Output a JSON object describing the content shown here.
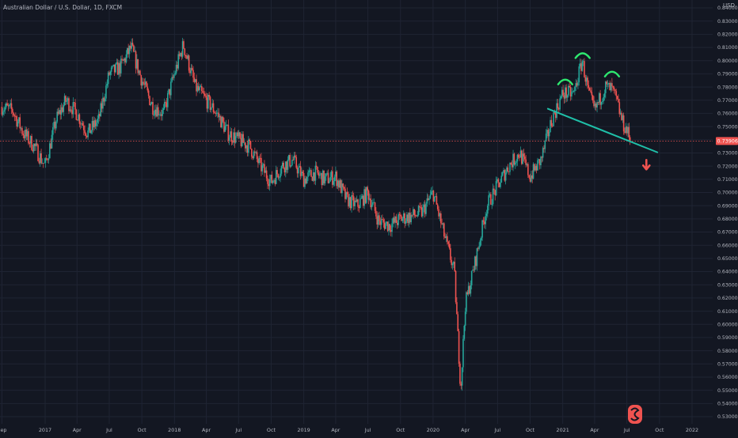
{
  "title": "Australian Dollar / U.S. Dollar, 1D, FXCM",
  "currency": "USD",
  "price_label": "0.73906",
  "colors": {
    "background": "#131722",
    "grid": "#1f2433",
    "up": "#26a69a",
    "down": "#ef5350",
    "axis_text": "#b2b5be",
    "neckline": "#1fbfa8",
    "shoulder_marks": "#2ee86f",
    "price_line": "#ef5350",
    "arrow": "#ef5350"
  },
  "chart_data": {
    "type": "candlestick",
    "symbol": "AUDUSD",
    "interval": "1D",
    "source": "FXCM",
    "y_axis": {
      "range": [
        0.525,
        0.84
      ],
      "ticks": [
        "0.84000",
        "0.83000",
        "0.82000",
        "0.81000",
        "0.80000",
        "0.79000",
        "0.78000",
        "0.77000",
        "0.76000",
        "0.75000",
        "0.74000",
        "0.73000",
        "0.72000",
        "0.71000",
        "0.70000",
        "0.69000",
        "0.68000",
        "0.67000",
        "0.66000",
        "0.65000",
        "0.64000",
        "0.63000",
        "0.62000",
        "0.61000",
        "0.60000",
        "0.59000",
        "0.58000",
        "0.57000",
        "0.56000",
        "0.55000",
        "0.54000",
        "0.53000"
      ]
    },
    "x_axis": {
      "range": [
        "2016-09-01",
        "2022-03-01"
      ],
      "ticks": [
        {
          "label": "Sep",
          "date": "2016-09-01"
        },
        {
          "label": "2017",
          "date": "2017-01-01"
        },
        {
          "label": "Apr",
          "date": "2017-04-01"
        },
        {
          "label": "Jul",
          "date": "2017-07-01"
        },
        {
          "label": "Oct",
          "date": "2017-10-01"
        },
        {
          "label": "2018",
          "date": "2018-01-01"
        },
        {
          "label": "Apr",
          "date": "2018-04-01"
        },
        {
          "label": "Jul",
          "date": "2018-07-01"
        },
        {
          "label": "Oct",
          "date": "2018-10-01"
        },
        {
          "label": "2019",
          "date": "2019-01-01"
        },
        {
          "label": "Apr",
          "date": "2019-04-01"
        },
        {
          "label": "Jul",
          "date": "2019-07-01"
        },
        {
          "label": "Oct",
          "date": "2019-10-01"
        },
        {
          "label": "2020",
          "date": "2020-01-01"
        },
        {
          "label": "Apr",
          "date": "2020-04-01"
        },
        {
          "label": "Jul",
          "date": "2020-07-01"
        },
        {
          "label": "Oct",
          "date": "2020-10-01"
        },
        {
          "label": "2021",
          "date": "2021-01-01"
        },
        {
          "label": "Apr",
          "date": "2021-04-01"
        },
        {
          "label": "Jul",
          "date": "2021-07-01"
        },
        {
          "label": "Oct",
          "date": "2021-10-01"
        },
        {
          "label": "2022",
          "date": "2022-01-01"
        }
      ]
    },
    "price_path": [
      [
        "2016-09-01",
        0.765
      ],
      [
        "2016-10-01",
        0.762
      ],
      [
        "2016-11-01",
        0.745
      ],
      [
        "2016-12-01",
        0.735
      ],
      [
        "2017-01-01",
        0.72
      ],
      [
        "2017-02-01",
        0.755
      ],
      [
        "2017-03-01",
        0.77
      ],
      [
        "2017-04-01",
        0.76
      ],
      [
        "2017-05-01",
        0.745
      ],
      [
        "2017-06-01",
        0.755
      ],
      [
        "2017-07-01",
        0.79
      ],
      [
        "2017-08-01",
        0.795
      ],
      [
        "2017-09-01",
        0.81
      ],
      [
        "2017-10-01",
        0.785
      ],
      [
        "2017-11-01",
        0.765
      ],
      [
        "2017-12-01",
        0.76
      ],
      [
        "2018-01-01",
        0.79
      ],
      [
        "2018-01-26",
        0.812
      ],
      [
        "2018-03-01",
        0.78
      ],
      [
        "2018-04-01",
        0.77
      ],
      [
        "2018-05-01",
        0.76
      ],
      [
        "2018-06-01",
        0.745
      ],
      [
        "2018-07-01",
        0.74
      ],
      [
        "2018-08-01",
        0.735
      ],
      [
        "2018-09-01",
        0.72
      ],
      [
        "2018-10-01",
        0.708
      ],
      [
        "2018-11-01",
        0.72
      ],
      [
        "2018-12-01",
        0.725
      ],
      [
        "2019-01-01",
        0.71
      ],
      [
        "2019-02-01",
        0.715
      ],
      [
        "2019-03-01",
        0.71
      ],
      [
        "2019-04-01",
        0.712
      ],
      [
        "2019-05-01",
        0.695
      ],
      [
        "2019-06-01",
        0.69
      ],
      [
        "2019-07-01",
        0.7
      ],
      [
        "2019-08-01",
        0.678
      ],
      [
        "2019-09-01",
        0.675
      ],
      [
        "2019-10-01",
        0.68
      ],
      [
        "2019-11-01",
        0.682
      ],
      [
        "2019-12-01",
        0.685
      ],
      [
        "2020-01-01",
        0.7
      ],
      [
        "2020-02-01",
        0.668
      ],
      [
        "2020-03-01",
        0.64
      ],
      [
        "2020-03-19",
        0.551
      ],
      [
        "2020-04-01",
        0.615
      ],
      [
        "2020-05-01",
        0.65
      ],
      [
        "2020-06-01",
        0.69
      ],
      [
        "2020-07-01",
        0.705
      ],
      [
        "2020-08-01",
        0.72
      ],
      [
        "2020-09-01",
        0.73
      ],
      [
        "2020-10-01",
        0.712
      ],
      [
        "2020-11-01",
        0.725
      ],
      [
        "2020-12-01",
        0.755
      ],
      [
        "2021-01-01",
        0.775
      ],
      [
        "2021-02-01",
        0.775
      ],
      [
        "2021-02-25",
        0.8
      ],
      [
        "2021-03-15",
        0.775
      ],
      [
        "2021-04-01",
        0.762
      ],
      [
        "2021-05-01",
        0.78
      ],
      [
        "2021-05-20",
        0.778
      ],
      [
        "2021-06-01",
        0.77
      ],
      [
        "2021-06-20",
        0.752
      ],
      [
        "2021-07-01",
        0.747
      ],
      [
        "2021-07-12",
        0.739
      ]
    ],
    "annotations": {
      "neckline": {
        "from": [
          "2020-11-20",
          0.7635
        ],
        "to": [
          "2021-09-25",
          0.7305
        ]
      },
      "shoulder_arcs": [
        {
          "center_date": "2021-01-08",
          "level": 0.785
        },
        {
          "center_date": "2021-02-26",
          "level": 0.805
        },
        {
          "center_date": "2021-05-20",
          "level": 0.791
        }
      ],
      "arrow": {
        "date": "2021-08-25",
        "level": 0.7205,
        "direction": "down"
      },
      "current_price": 0.73906
    }
  }
}
